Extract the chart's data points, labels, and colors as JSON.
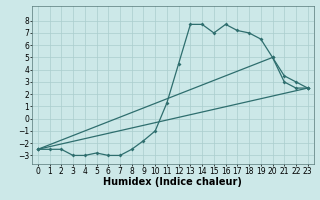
{
  "title": "",
  "xlabel": "Humidex (Indice chaleur)",
  "ylabel": "",
  "xlim": [
    -0.5,
    23.5
  ],
  "ylim": [
    -3.7,
    9.2
  ],
  "xticks": [
    0,
    1,
    2,
    3,
    4,
    5,
    6,
    7,
    8,
    9,
    10,
    11,
    12,
    13,
    14,
    15,
    16,
    17,
    18,
    19,
    20,
    21,
    22,
    23
  ],
  "yticks": [
    -3,
    -2,
    -1,
    0,
    1,
    2,
    3,
    4,
    5,
    6,
    7,
    8
  ],
  "bg_color": "#cce8e8",
  "grid_color": "#aacece",
  "line_color": "#2e6e6e",
  "line1_x": [
    0,
    1,
    2,
    3,
    4,
    5,
    6,
    7,
    8,
    9,
    10,
    11,
    12,
    13,
    14,
    15,
    16,
    17,
    18,
    19,
    20,
    21,
    22,
    23
  ],
  "line1_y": [
    -2.5,
    -2.5,
    -2.5,
    -3.0,
    -3.0,
    -2.8,
    -3.0,
    -3.0,
    -2.5,
    -1.8,
    -1.0,
    1.3,
    4.5,
    7.7,
    7.7,
    7.0,
    7.7,
    7.2,
    7.0,
    6.5,
    5.0,
    3.0,
    2.5,
    2.5
  ],
  "line2_x": [
    0,
    20,
    21,
    22,
    23
  ],
  "line2_y": [
    -2.5,
    5.0,
    3.5,
    3.0,
    2.5
  ],
  "line3_x": [
    0,
    23
  ],
  "line3_y": [
    -2.5,
    2.5
  ],
  "fontsize_label": 7,
  "tick_fontsize": 5.5
}
